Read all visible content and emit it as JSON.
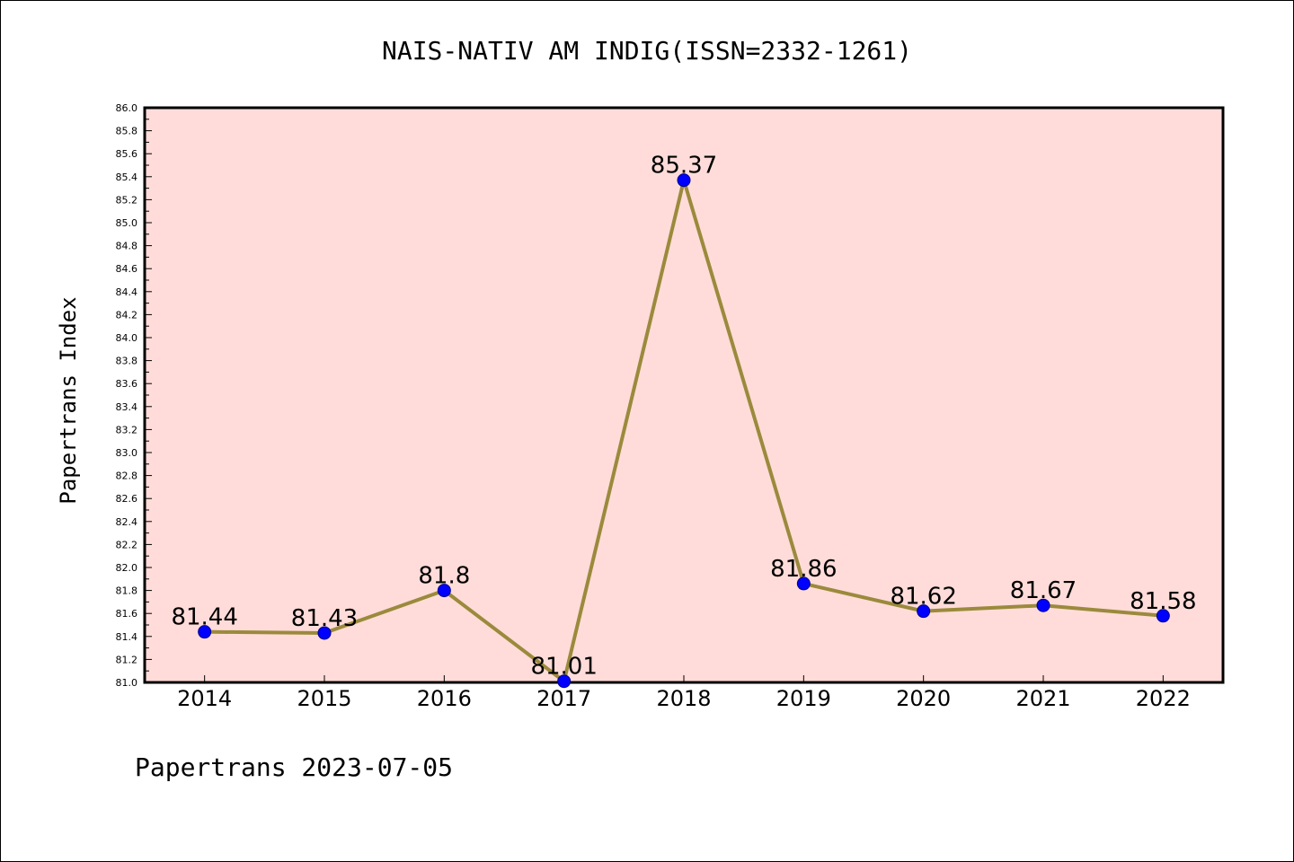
{
  "chart_data": {
    "type": "line",
    "title": "NAIS-NATIV AM INDIG(ISSN=2332-1261)",
    "ylabel": "Papertrans Index",
    "xlabel": "",
    "footer": "Papertrans 2023-07-05",
    "categories": [
      "2014",
      "2015",
      "2016",
      "2017",
      "2018",
      "2019",
      "2020",
      "2021",
      "2022"
    ],
    "values": [
      81.44,
      81.43,
      81.8,
      81.01,
      85.37,
      81.86,
      81.62,
      81.67,
      81.58
    ],
    "data_labels": [
      "81.44",
      "81.43",
      "81.8",
      "81.01",
      "85.37",
      "81.86",
      "81.62",
      "81.67",
      "81.58"
    ],
    "ylim": [
      81.0,
      86.0
    ],
    "yticks": [
      "81.0",
      "81.2",
      "81.4",
      "81.6",
      "81.8",
      "82.0",
      "82.2",
      "82.4",
      "82.6",
      "82.8",
      "83.0",
      "83.2",
      "83.4",
      "83.6",
      "83.8",
      "84.0",
      "84.2",
      "84.4",
      "84.6",
      "84.8",
      "85.0",
      "85.2",
      "85.4",
      "85.6",
      "85.8",
      "86.0"
    ],
    "grid": false,
    "colors": {
      "plot_background": "#ffdcd9",
      "line": "#9b8a3c",
      "marker": "#0000ff"
    }
  }
}
